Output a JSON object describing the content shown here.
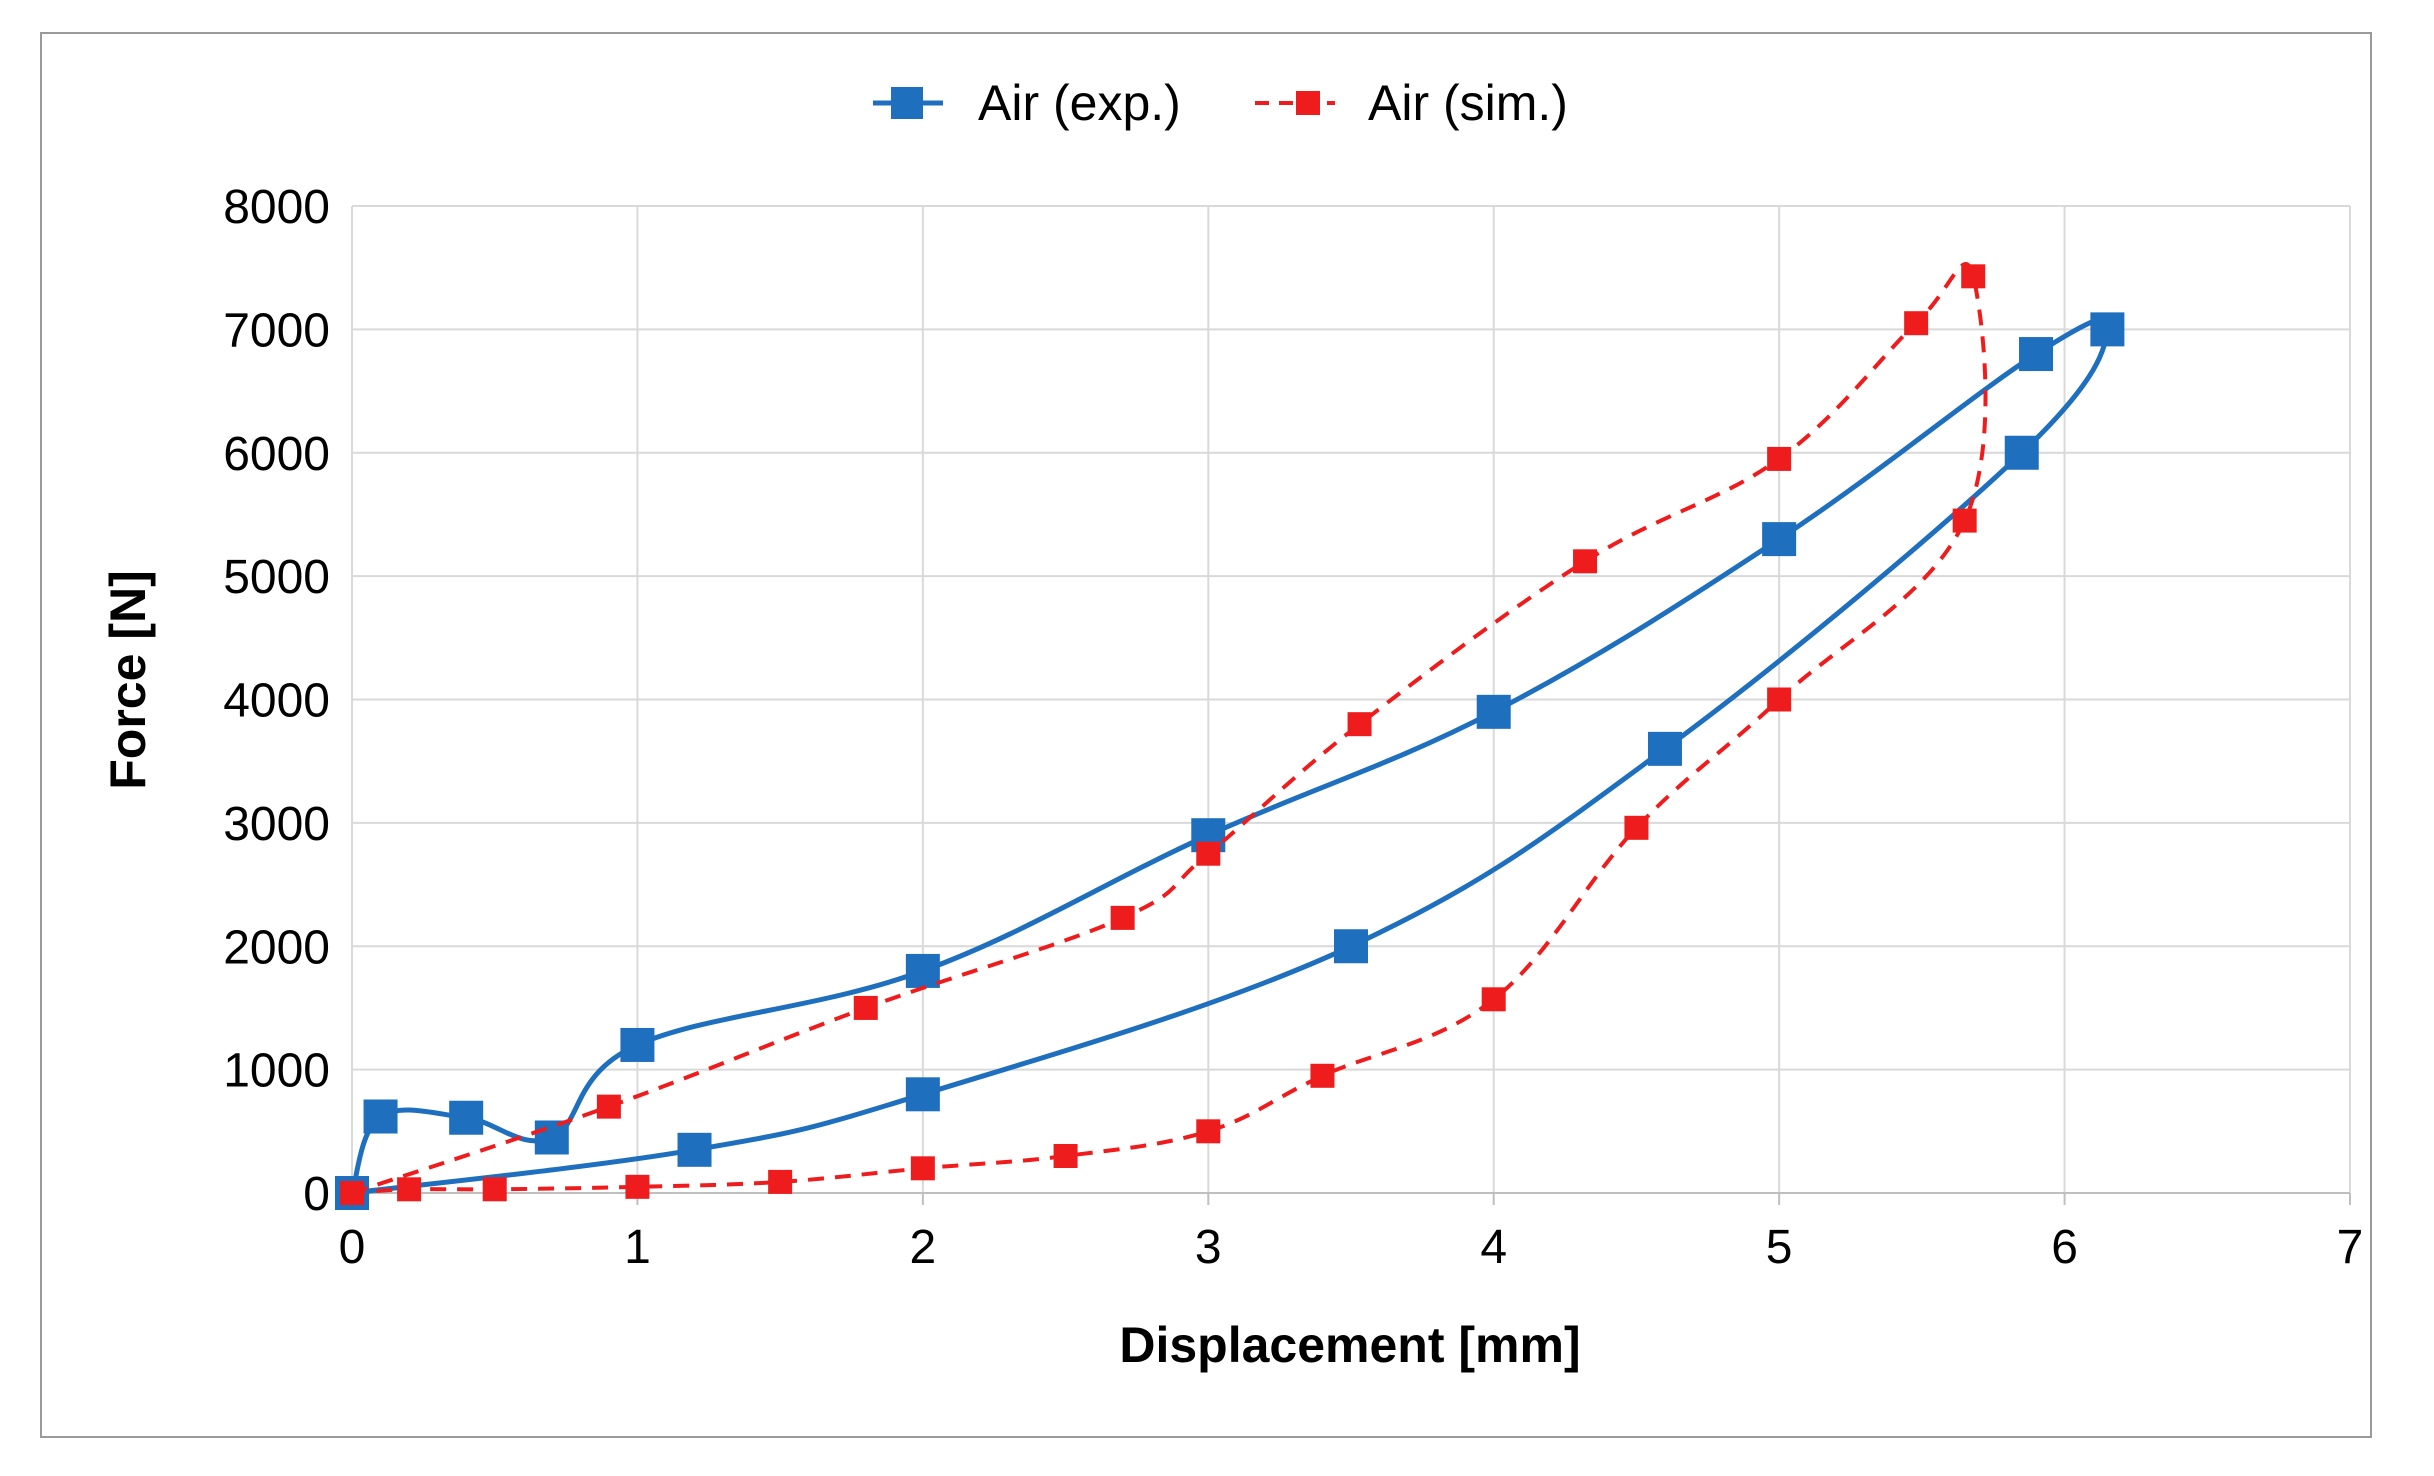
{
  "chart_data": {
    "type": "scatter",
    "title": "",
    "xlabel": "Displacement [mm]",
    "ylabel": "Force [N]",
    "xlim": [
      0,
      7
    ],
    "ylim": [
      0,
      8000
    ],
    "xticks": [
      0,
      1,
      2,
      3,
      4,
      5,
      6,
      7
    ],
    "yticks": [
      0,
      1000,
      2000,
      3000,
      4000,
      5000,
      6000,
      7000,
      8000
    ],
    "xtick_labels": [
      "0",
      "1",
      "2",
      "3",
      "4",
      "5",
      "6",
      "7"
    ],
    "ytick_labels": [
      "0",
      "1000",
      "2000",
      "3000",
      "4000",
      "5000",
      "6000",
      "7000",
      "8000"
    ],
    "grid": true,
    "legend_position": "top-center",
    "series": [
      {
        "name": "Air (exp.)",
        "color": "#1f6fbf",
        "line_style": "solid",
        "marker": "square",
        "x": [
          0,
          0.1,
          0.4,
          0.7,
          1.0,
          2.0,
          3.0,
          4.0,
          5.0,
          5.9,
          6.15,
          5.85,
          4.6,
          3.5,
          2.0,
          1.2,
          0
        ],
        "y": [
          0,
          620,
          610,
          450,
          1200,
          1800,
          2900,
          3900,
          5300,
          6800,
          7000,
          6000,
          3600,
          2000,
          800,
          350,
          0
        ]
      },
      {
        "name": "Air (sim.)",
        "color": "#ee1c1c",
        "line_style": "dashed",
        "marker": "square",
        "x": [
          0,
          0.9,
          1.8,
          2.7,
          3.0,
          3.53,
          4.32,
          5.0,
          5.48,
          5.68,
          5.65,
          5.0,
          4.5,
          4.0,
          3.4,
          3.0,
          2.5,
          2.0,
          1.5,
          1.0,
          0.5,
          0.2,
          0
        ],
        "y": [
          0,
          700,
          1500,
          2230,
          2750,
          3800,
          5120,
          5950,
          7050,
          7430,
          5450,
          4000,
          2960,
          1570,
          950,
          500,
          300,
          200,
          90,
          50,
          30,
          30,
          0
        ]
      }
    ]
  }
}
